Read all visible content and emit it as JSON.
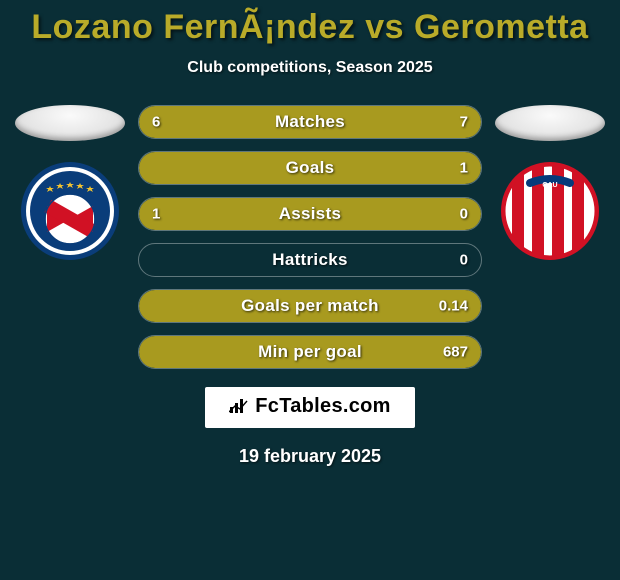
{
  "background_color": "#0a2e36",
  "header": {
    "title": "Lozano FernÃ¡ndez vs Gerometta",
    "title_color": "#b9ab29",
    "title_fontsize": 34,
    "subtitle": "Club competitions, Season 2025",
    "subtitle_color": "#ffffff",
    "subtitle_fontsize": 16
  },
  "players": {
    "left": {
      "ellipse_color": "#e6e6e6",
      "crest": {
        "type": "argentinos-juniors",
        "bg": "#ffffff",
        "ring": "#0a3d7a",
        "flag_bg": "#ffffff",
        "flag_diagonal": "#d11124",
        "stars": "#f4c430"
      }
    },
    "right": {
      "ellipse_color": "#e6e6e6",
      "crest": {
        "type": "union-santa-fe",
        "bg": "#ffffff",
        "stripe": "#d11124",
        "ring": "#d11124"
      }
    }
  },
  "stats": {
    "track_border": "rgba(255,255,255,0.35)",
    "fill_color": "#a89a1f",
    "label_color": "#ffffff",
    "label_fontsize": 17,
    "value_fontsize": 15,
    "rows": [
      {
        "label": "Matches",
        "left_val": "6",
        "right_val": "7",
        "left_pct": 46,
        "right_pct": 54
      },
      {
        "label": "Goals",
        "left_val": "",
        "right_val": "1",
        "left_pct": 0,
        "right_pct": 100
      },
      {
        "label": "Assists",
        "left_val": "1",
        "right_val": "0",
        "left_pct": 100,
        "right_pct": 0
      },
      {
        "label": "Hattricks",
        "left_val": "",
        "right_val": "0",
        "left_pct": 0,
        "right_pct": 0
      },
      {
        "label": "Goals per match",
        "left_val": "",
        "right_val": "0.14",
        "left_pct": 0,
        "right_pct": 100
      },
      {
        "label": "Min per goal",
        "left_val": "",
        "right_val": "687",
        "left_pct": 0,
        "right_pct": 100
      }
    ]
  },
  "footer": {
    "attribution": "FcTables.com",
    "attribution_bg": "#ffffff",
    "attribution_color": "#000000",
    "attribution_fontsize": 20,
    "date": "19 february 2025",
    "date_color": "#ffffff",
    "date_fontsize": 18
  }
}
